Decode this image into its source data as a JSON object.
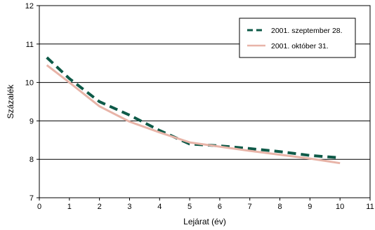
{
  "chart_data": {
    "type": "line",
    "xlabel": "Lejárat (év)",
    "ylabel": "Százalék",
    "xlim": [
      0,
      11
    ],
    "ylim": [
      7,
      12
    ],
    "x_ticks": [
      0,
      1,
      2,
      3,
      4,
      5,
      6,
      7,
      8,
      9,
      10,
      11
    ],
    "y_ticks": [
      7,
      8,
      9,
      10,
      11,
      12
    ],
    "grid": "horizontal",
    "legend_position": "top-right",
    "series": [
      {
        "name": "2001. szeptember 28.",
        "color": "#0e5a48",
        "style": "dashed",
        "x": [
          0.25,
          1,
          2,
          3,
          4,
          5,
          6,
          7,
          8,
          9,
          10
        ],
        "y": [
          10.65,
          10.1,
          9.5,
          9.15,
          8.75,
          8.4,
          8.35,
          8.28,
          8.2,
          8.1,
          8.04
        ]
      },
      {
        "name": "2001. október 31.",
        "color": "#e8b4a8",
        "style": "solid",
        "x": [
          0.25,
          1,
          2,
          3,
          4,
          5,
          6,
          7,
          8,
          9,
          10
        ],
        "y": [
          10.45,
          10.0,
          9.38,
          8.98,
          8.7,
          8.44,
          8.33,
          8.22,
          8.12,
          8.02,
          7.9
        ]
      }
    ]
  }
}
